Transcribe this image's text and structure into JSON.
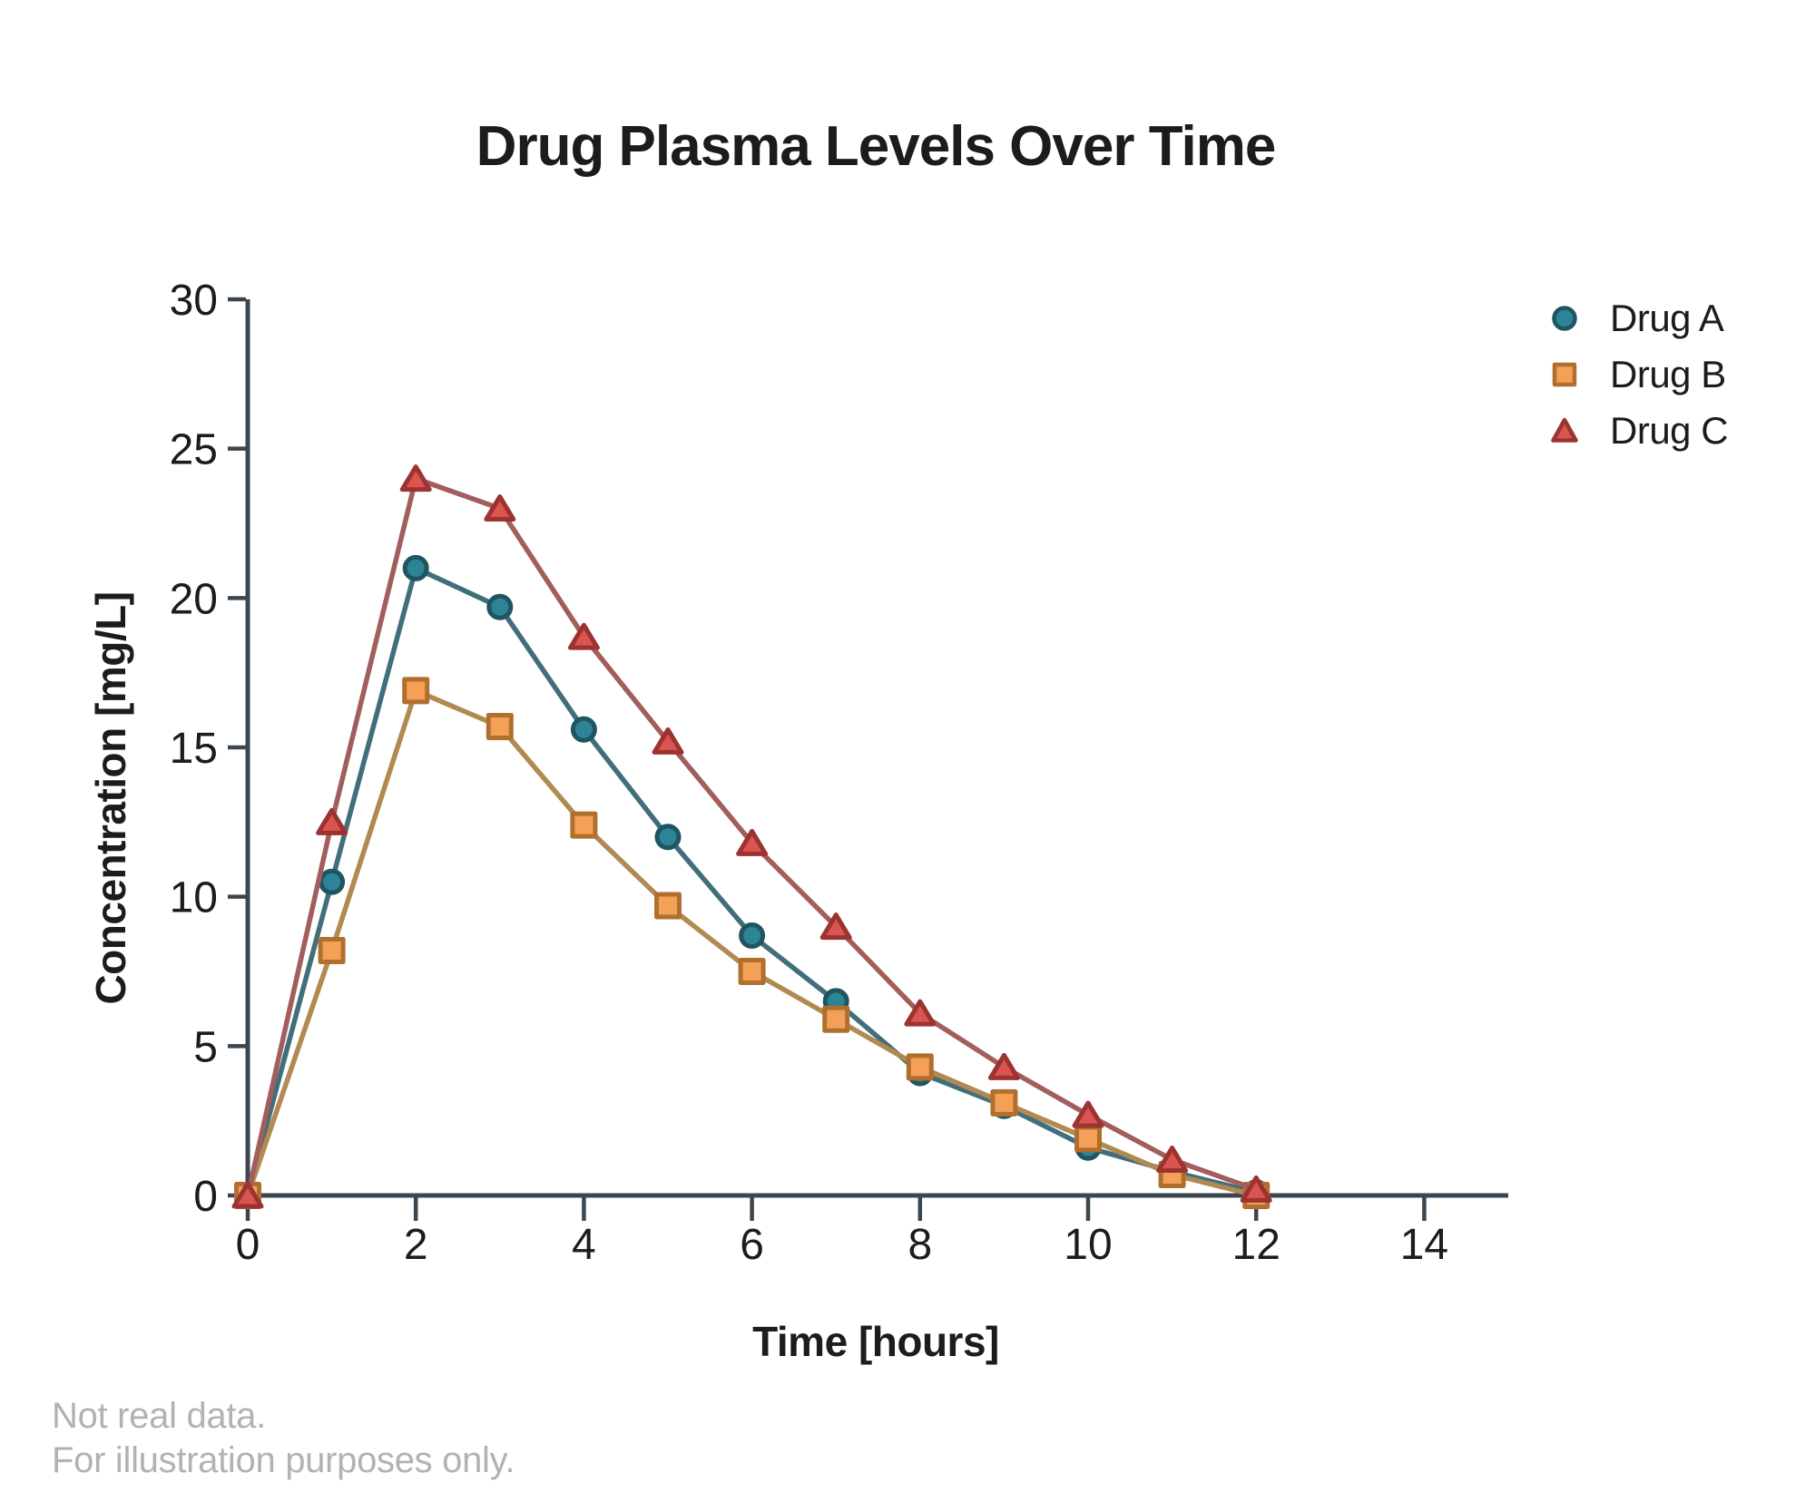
{
  "title": "Drug Plasma Levels Over Time",
  "footer": {
    "line1": "Not real data.",
    "line2": "For illustration purposes only."
  },
  "colors": {
    "background": "#FFFFFF",
    "axis": "#3A4750",
    "text": "#1C1C1C",
    "footer_text": "#B2B2B2"
  },
  "chart_data": {
    "type": "line",
    "title": "Drug Plasma Levels Over Time",
    "xlabel": "Time [hours]",
    "ylabel": "Concentration [mg/L]",
    "grid": false,
    "legend_position": "upper right",
    "x": [
      0,
      1,
      2,
      3,
      4,
      5,
      6,
      7,
      8,
      9,
      10,
      11,
      12
    ],
    "series": [
      {
        "name": "Drug A",
        "marker": "circle",
        "line_color": "#416E7B",
        "marker_fill": "#2E8396",
        "marker_stroke": "#1F5560",
        "values": [
          0,
          10.5,
          21,
          19.7,
          15.6,
          12,
          8.7,
          6.5,
          4.1,
          3,
          1.6,
          0.8,
          0.1
        ]
      },
      {
        "name": "Drug B",
        "marker": "square",
        "line_color": "#B18A52",
        "marker_fill": "#F4A157",
        "marker_stroke": "#B06F2E",
        "values": [
          0,
          8.2,
          16.9,
          15.7,
          12.4,
          9.7,
          7.5,
          5.9,
          4.3,
          3.1,
          1.9,
          0.7,
          0
        ]
      },
      {
        "name": "Drug C",
        "marker": "triangle",
        "line_color": "#A25D5D",
        "marker_fill": "#DA5451",
        "marker_stroke": "#9C3331",
        "values": [
          0,
          12.5,
          24,
          23,
          18.7,
          15.2,
          11.8,
          9,
          6.1,
          4.3,
          2.7,
          1.2,
          0.2
        ]
      }
    ],
    "x_axis": {
      "ticks": [
        0,
        2,
        4,
        6,
        8,
        10,
        12,
        14
      ],
      "range": [
        0,
        15
      ]
    },
    "y_axis": {
      "ticks": [
        0,
        5,
        10,
        15,
        20,
        25,
        30
      ],
      "range": [
        0,
        30
      ]
    }
  }
}
